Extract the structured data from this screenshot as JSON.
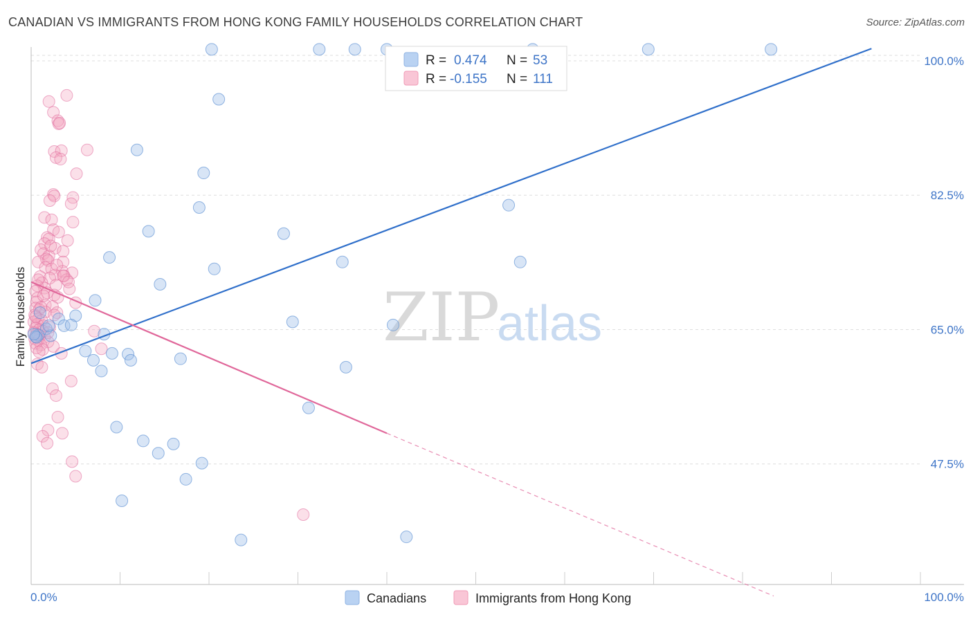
{
  "title": "CANADIAN VS IMMIGRANTS FROM HONG KONG FAMILY HOUSEHOLDS CORRELATION CHART",
  "source": "Source: ZipAtlas.com",
  "colors": {
    "canadians": "#9dbfe9",
    "canadians_line": "#2f6fca",
    "hongkong": "#f4a7bf",
    "hongkong_line": "#e0679a",
    "axis_text": "#3d74c7",
    "grid": "#dddddd"
  },
  "legend": {
    "row1": {
      "r_label": "R =",
      "r_value": "0.474",
      "n_label": "N =",
      "n_value": "53"
    },
    "row2": {
      "r_label": "R =",
      "r_value": "-0.155",
      "n_label": "N =",
      "n_value": "111"
    }
  },
  "bottom_legend": {
    "series1": "Canadians",
    "series2": "Immigrants from Hong Kong"
  },
  "watermark": {
    "zip": "ZIP",
    "atlas": "atlas"
  },
  "chart_data": {
    "type": "scatter",
    "title": "CANADIAN VS IMMIGRANTS FROM HONG KONG FAMILY HOUSEHOLDS CORRELATION CHART",
    "xlabel": "",
    "ylabel": "Family Households",
    "xlim": [
      0,
      100
    ],
    "ylim": [
      31.8,
      101.8
    ],
    "x_tick_labels": [
      "0.0%",
      "100.0%"
    ],
    "y_ticks": [
      100.0,
      82.5,
      65.0,
      47.5
    ],
    "y_tick_labels": [
      "100.0%",
      "82.5%",
      "65.0%",
      "47.5%"
    ],
    "grid": true,
    "series": [
      {
        "name": "Canadians",
        "R": 0.474,
        "N": 53,
        "trend": {
          "x0": 0.0,
          "y0": 60.6,
          "x1": 94.5,
          "y1": 101.6,
          "dashed_to": null
        },
        "points": [
          [
            20.3,
            101.5
          ],
          [
            32.4,
            101.5
          ],
          [
            36.4,
            101.5
          ],
          [
            40.0,
            101.5
          ],
          [
            56.4,
            101.5
          ],
          [
            69.4,
            101.5
          ],
          [
            83.2,
            101.5
          ],
          [
            21.1,
            95.0
          ],
          [
            11.9,
            88.4
          ],
          [
            19.4,
            85.4
          ],
          [
            18.9,
            80.9
          ],
          [
            53.7,
            81.2
          ],
          [
            13.2,
            77.8
          ],
          [
            28.4,
            77.5
          ],
          [
            8.8,
            74.4
          ],
          [
            20.6,
            72.9
          ],
          [
            35.0,
            73.8
          ],
          [
            55.0,
            73.8
          ],
          [
            14.5,
            70.9
          ],
          [
            7.2,
            68.8
          ],
          [
            5.0,
            66.8
          ],
          [
            1.0,
            67.2
          ],
          [
            3.1,
            66.4
          ],
          [
            3.7,
            65.5
          ],
          [
            1.7,
            65.1
          ],
          [
            0.8,
            64.3
          ],
          [
            2.2,
            64.2
          ],
          [
            2.0,
            65.5
          ],
          [
            0.5,
            64.1
          ],
          [
            0.6,
            64.0
          ],
          [
            29.4,
            66.0
          ],
          [
            40.7,
            65.6
          ],
          [
            8.2,
            64.4
          ],
          [
            6.1,
            62.2
          ],
          [
            9.1,
            61.9
          ],
          [
            10.9,
            61.8
          ],
          [
            11.2,
            61.0
          ],
          [
            16.8,
            61.2
          ],
          [
            7.0,
            61.0
          ],
          [
            7.9,
            59.6
          ],
          [
            35.4,
            60.1
          ],
          [
            31.2,
            54.8
          ],
          [
            9.6,
            52.3
          ],
          [
            12.6,
            50.5
          ],
          [
            16.0,
            50.1
          ],
          [
            14.3,
            48.9
          ],
          [
            19.2,
            47.6
          ],
          [
            17.4,
            45.5
          ],
          [
            10.2,
            42.7
          ],
          [
            42.2,
            38.0
          ],
          [
            23.6,
            37.6
          ],
          [
            0.3,
            64.4
          ],
          [
            4.5,
            65.6
          ]
        ]
      },
      {
        "name": "Immigrants from Hong Kong",
        "R": -0.155,
        "N": 111,
        "trend": {
          "x0": 0.0,
          "y0": 71.2,
          "x1": 40.0,
          "y1": 51.5,
          "dashed_to": [
            83.5,
            30.3
          ]
        },
        "points": [
          [
            4.0,
            95.5
          ],
          [
            2.0,
            94.7
          ],
          [
            2.5,
            93.3
          ],
          [
            3.0,
            92.2
          ],
          [
            3.1,
            91.8
          ],
          [
            3.2,
            91.9
          ],
          [
            2.6,
            88.2
          ],
          [
            3.4,
            88.3
          ],
          [
            6.3,
            88.4
          ],
          [
            2.8,
            87.4
          ],
          [
            3.3,
            87.2
          ],
          [
            5.1,
            85.3
          ],
          [
            2.5,
            82.6
          ],
          [
            2.6,
            82.4
          ],
          [
            4.7,
            82.2
          ],
          [
            2.1,
            81.8
          ],
          [
            4.5,
            81.4
          ],
          [
            1.5,
            79.6
          ],
          [
            2.3,
            79.3
          ],
          [
            4.7,
            79.0
          ],
          [
            2.5,
            78.0
          ],
          [
            3.1,
            77.7
          ],
          [
            1.8,
            77.0
          ],
          [
            2.0,
            76.8
          ],
          [
            4.1,
            76.6
          ],
          [
            1.5,
            76.2
          ],
          [
            2.7,
            75.6
          ],
          [
            3.6,
            75.2
          ],
          [
            1.1,
            75.4
          ],
          [
            1.4,
            74.9
          ],
          [
            2.0,
            74.6
          ],
          [
            1.7,
            74.2
          ],
          [
            1.9,
            74.0
          ],
          [
            0.8,
            73.8
          ],
          [
            3.6,
            73.8
          ],
          [
            1.6,
            73.1
          ],
          [
            2.3,
            72.9
          ],
          [
            3.5,
            72.6
          ],
          [
            4.6,
            72.4
          ],
          [
            2.7,
            72.1
          ],
          [
            3.7,
            72.0
          ],
          [
            1.0,
            71.9
          ],
          [
            2.1,
            71.7
          ],
          [
            4.0,
            71.5
          ],
          [
            1.2,
            71.1
          ],
          [
            2.8,
            70.8
          ],
          [
            0.7,
            70.7
          ],
          [
            1.5,
            70.4
          ],
          [
            4.3,
            70.3
          ],
          [
            0.5,
            70.0
          ],
          [
            1.8,
            69.8
          ],
          [
            2.6,
            69.5
          ],
          [
            0.7,
            69.1
          ],
          [
            3.0,
            69.2
          ],
          [
            0.6,
            68.6
          ],
          [
            5.0,
            68.5
          ],
          [
            1.6,
            68.2
          ],
          [
            2.4,
            68.0
          ],
          [
            0.5,
            67.8
          ],
          [
            0.9,
            67.6
          ],
          [
            1.6,
            67.3
          ],
          [
            2.9,
            67.2
          ],
          [
            0.4,
            66.9
          ],
          [
            0.8,
            66.4
          ],
          [
            1.2,
            66.2
          ],
          [
            0.3,
            66.0
          ],
          [
            0.7,
            65.7
          ],
          [
            1.4,
            65.5
          ],
          [
            2.1,
            65.3
          ],
          [
            0.5,
            65.2
          ],
          [
            0.9,
            65.0
          ],
          [
            1.3,
            64.8
          ],
          [
            0.3,
            64.6
          ],
          [
            0.6,
            64.4
          ],
          [
            1.0,
            64.2
          ],
          [
            1.5,
            64.0
          ],
          [
            0.4,
            63.8
          ],
          [
            0.8,
            63.6
          ],
          [
            1.9,
            63.4
          ],
          [
            0.5,
            63.2
          ],
          [
            1.1,
            63.0
          ],
          [
            2.5,
            62.8
          ],
          [
            0.6,
            62.6
          ],
          [
            1.3,
            62.4
          ],
          [
            0.9,
            62.1
          ],
          [
            3.4,
            61.9
          ],
          [
            7.1,
            64.8
          ],
          [
            7.9,
            62.5
          ],
          [
            0.7,
            60.5
          ],
          [
            1.2,
            60.1
          ],
          [
            4.5,
            58.3
          ],
          [
            2.4,
            57.3
          ],
          [
            2.8,
            56.4
          ],
          [
            3.0,
            53.6
          ],
          [
            1.9,
            51.9
          ],
          [
            1.3,
            51.1
          ],
          [
            3.5,
            51.5
          ],
          [
            1.8,
            50.2
          ],
          [
            4.6,
            47.8
          ],
          [
            5.0,
            45.9
          ],
          [
            30.6,
            40.9
          ],
          [
            3.6,
            72.0
          ],
          [
            2.2,
            75.9
          ],
          [
            1.1,
            67.9
          ],
          [
            0.5,
            66.7
          ],
          [
            1.9,
            64.6
          ],
          [
            2.6,
            66.9
          ],
          [
            1.4,
            69.4
          ],
          [
            0.8,
            71.5
          ],
          [
            4.2,
            71.2
          ],
          [
            2.9,
            73.4
          ]
        ]
      }
    ]
  }
}
